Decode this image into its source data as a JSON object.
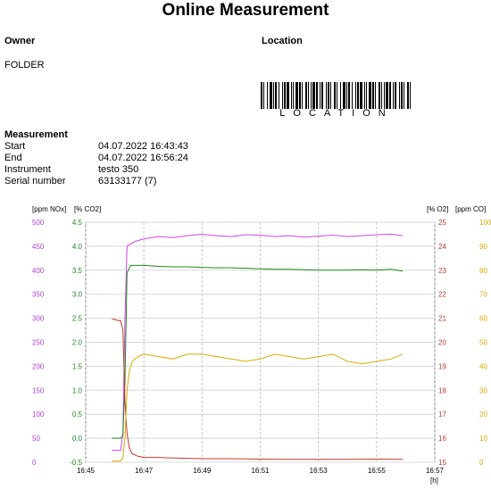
{
  "report": {
    "title": "Online Measurement",
    "owner_label": "Owner",
    "owner_value": "FOLDER",
    "location_label": "Location",
    "barcode_text": "LOCATION",
    "measurement_label": "Measurement",
    "rows": [
      {
        "label": "Start",
        "value": "04.07.2022 16:43:43"
      },
      {
        "label": "End",
        "value": "04.07.2022 16:56:24"
      },
      {
        "label": "Instrument",
        "value": "testo 350"
      },
      {
        "label": "Serial number",
        "value": "63133177 (7)"
      }
    ]
  },
  "chart_data": {
    "type": "line",
    "title": "",
    "xlabel": "[h]",
    "xticks": [
      "16:45",
      "16:47",
      "16:49",
      "16:51",
      "16:53",
      "16:55",
      "16:57"
    ],
    "xlim_minutes": [
      45,
      57
    ],
    "axes": {
      "nox": {
        "label": "[ppm NOx]",
        "color": "#b040d8",
        "ticks": [
          "500",
          "450",
          "400",
          "350",
          "300",
          "250",
          "200",
          "150",
          "100",
          "50",
          "0"
        ],
        "range": [
          0,
          500
        ]
      },
      "co2": {
        "label": "[% CO2]",
        "color": "#1a8a1a",
        "ticks": [
          "4.5",
          "4.0",
          "3.5",
          "3.0",
          "2.5",
          "2.0",
          "1.5",
          "1.0",
          "0.5",
          "0.0",
          "-0.5"
        ],
        "range": [
          -0.5,
          4.5
        ]
      },
      "o2": {
        "label": "[% O2]",
        "color": "#c0392b",
        "ticks": [
          "25",
          "24",
          "23",
          "22",
          "21",
          "20",
          "19",
          "18",
          "17",
          "16",
          "15"
        ],
        "range": [
          15,
          25
        ]
      },
      "co": {
        "label": "[ppm CO]",
        "color": "#e0a800",
        "ticks": [
          "100",
          "90",
          "80",
          "70",
          "60",
          "50",
          "40",
          "30",
          "20",
          "10",
          "0"
        ],
        "range": [
          0,
          100
        ]
      }
    },
    "series": [
      {
        "name": "NOx",
        "axis": "nox",
        "color": "#cc44ee",
        "x": [
          45.9,
          46.0,
          46.1,
          46.2,
          46.28,
          46.35,
          46.42,
          46.55,
          46.7,
          47.0,
          47.5,
          48.0,
          48.5,
          49.0,
          49.5,
          50.0,
          50.5,
          51.0,
          51.5,
          52.0,
          52.5,
          53.0,
          53.5,
          54.0,
          54.5,
          55.0,
          55.5,
          55.9
        ],
        "y": [
          25,
          25,
          25,
          25,
          60,
          300,
          450,
          455,
          460,
          465,
          470,
          468,
          472,
          475,
          472,
          470,
          474,
          473,
          470,
          472,
          469,
          471,
          473,
          470,
          472,
          474,
          475,
          472
        ]
      },
      {
        "name": "CO2",
        "axis": "co2",
        "color": "#1a8a1a",
        "x": [
          45.9,
          46.0,
          46.1,
          46.2,
          46.28,
          46.35,
          46.42,
          46.55,
          47.0,
          47.5,
          48.0,
          48.5,
          49.0,
          49.5,
          50.0,
          50.5,
          51.0,
          51.5,
          52.0,
          52.5,
          53.0,
          53.5,
          54.0,
          54.5,
          55.0,
          55.5,
          55.9
        ],
        "y": [
          0.0,
          0.0,
          0.0,
          0.0,
          0.05,
          1.2,
          3.45,
          3.6,
          3.6,
          3.58,
          3.57,
          3.57,
          3.56,
          3.55,
          3.55,
          3.54,
          3.53,
          3.52,
          3.52,
          3.51,
          3.5,
          3.5,
          3.5,
          3.51,
          3.5,
          3.52,
          3.48
        ]
      },
      {
        "name": "O2",
        "axis": "o2",
        "color": "#c0392b",
        "x": [
          45.9,
          46.0,
          46.1,
          46.2,
          46.28,
          46.35,
          46.42,
          46.5,
          46.6,
          46.8,
          47.0,
          47.5,
          48.0,
          49.0,
          50.0,
          51.0,
          52.0,
          53.0,
          54.0,
          55.0,
          55.9
        ],
        "y": [
          20.95,
          20.95,
          20.9,
          20.9,
          20.5,
          17.5,
          16.2,
          15.6,
          15.35,
          15.25,
          15.2,
          15.2,
          15.18,
          15.15,
          15.15,
          15.13,
          15.12,
          15.12,
          15.12,
          15.13,
          15.12
        ]
      },
      {
        "name": "CO",
        "axis": "co",
        "color": "#e0a800",
        "x": [
          45.9,
          46.0,
          46.1,
          46.2,
          46.28,
          46.35,
          46.42,
          46.5,
          46.6,
          46.8,
          47.0,
          47.5,
          48.0,
          48.5,
          49.0,
          49.5,
          50.0,
          50.5,
          51.0,
          51.5,
          52.0,
          52.5,
          53.0,
          53.5,
          54.0,
          54.5,
          55.0,
          55.5,
          55.9
        ],
        "y": [
          0.5,
          0.5,
          0.5,
          0.5,
          2,
          10,
          30,
          38,
          42,
          44,
          45,
          44,
          43,
          45,
          45,
          44,
          43,
          42,
          43,
          45,
          44,
          43,
          44,
          45,
          42,
          41,
          42,
          43,
          45
        ]
      }
    ]
  }
}
